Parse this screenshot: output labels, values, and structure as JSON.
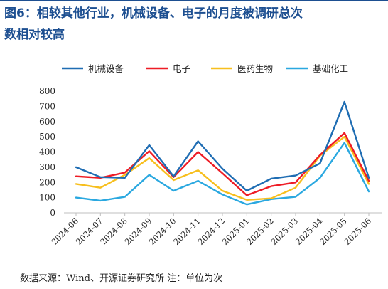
{
  "figure": {
    "title_line1": "图6：相较其他行业，机械设备、电子的月度被调研总次",
    "title_line2": "数相对较高"
  },
  "source": "数据来源：Wind、开源证券研究所 注：单位为次",
  "chart_data": {
    "type": "line",
    "x": [
      "2024-06",
      "2024-07",
      "2024-08",
      "2024-09",
      "2024-10",
      "2024-11",
      "2024-12",
      "2025-01",
      "2025-02",
      "2025-03",
      "2025-04",
      "2025-05",
      "2025-06"
    ],
    "ylim": [
      0,
      800
    ],
    "yticks": [
      0,
      100,
      200,
      300,
      400,
      500,
      600,
      700,
      800
    ],
    "grid": false,
    "legend_position": "top",
    "series": [
      {
        "name": "机械设备",
        "color": "#1f6db3",
        "values": [
          300,
          235,
          230,
          445,
          240,
          470,
          290,
          145,
          225,
          245,
          325,
          730,
          230
        ]
      },
      {
        "name": "电子",
        "color": "#ee1c25",
        "values": [
          240,
          230,
          265,
          405,
          235,
          400,
          260,
          115,
          175,
          200,
          380,
          525,
          210
        ]
      },
      {
        "name": "医药生物",
        "color": "#f7bf1e",
        "values": [
          190,
          165,
          250,
          360,
          215,
          280,
          145,
          85,
          95,
          165,
          375,
          500,
          190
        ]
      },
      {
        "name": "基础化工",
        "color": "#2aa8e0",
        "values": [
          100,
          80,
          105,
          250,
          145,
          210,
          120,
          55,
          90,
          105,
          230,
          460,
          140
        ]
      }
    ]
  }
}
